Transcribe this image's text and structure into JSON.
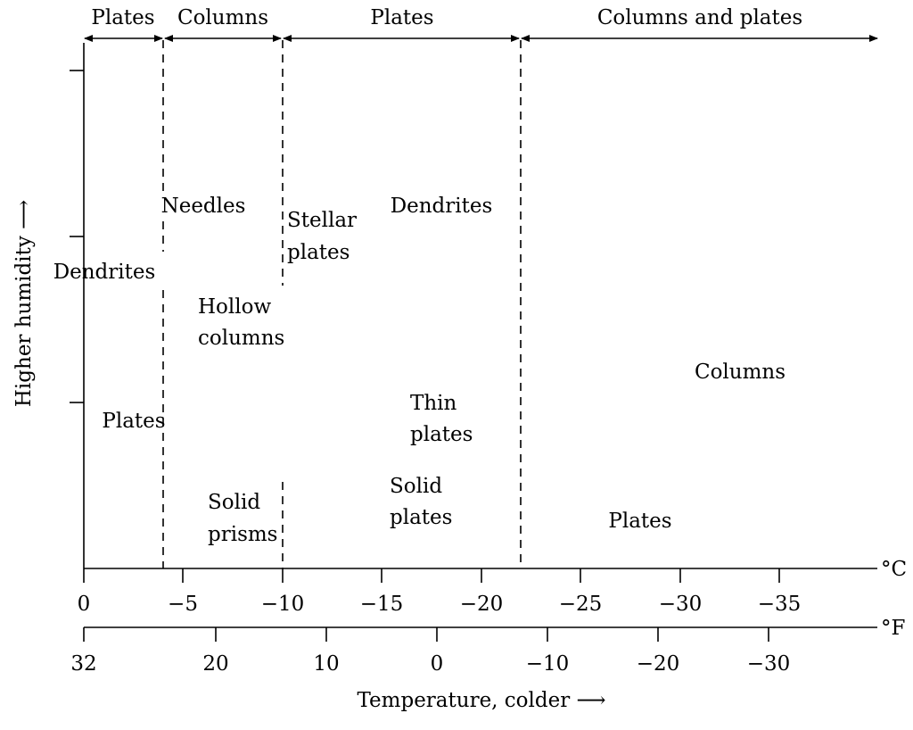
{
  "top_ranges": [
    "Plates",
    "Columns",
    "Plates",
    "Columns and plates"
  ],
  "regions": {
    "dendrites_left": "Dendrites",
    "plates_left": "Plates",
    "needles": "Needles",
    "hollow_columns_1": "Hollow",
    "hollow_columns_2": "columns",
    "solid_prisms_1": "Solid",
    "solid_prisms_2": "prisms",
    "stellar_plates_1": "Stellar",
    "stellar_plates_2": "plates",
    "dendrites_mid": "Dendrites",
    "thin_plates_1": "Thin",
    "thin_plates_2": "plates",
    "solid_plates_1": "Solid",
    "solid_plates_2": "plates",
    "columns_right": "Columns",
    "plates_right": "Plates"
  },
  "axes": {
    "y_label": "Higher humidity ⟶",
    "x_label": "Temperature, colder ⟶",
    "celsius_unit": "°C",
    "fahrenheit_unit": "°F",
    "celsius_ticks": [
      "0",
      "−5",
      "−10",
      "−15",
      "−20",
      "−25",
      "−30",
      "−35"
    ],
    "fahrenheit_ticks": [
      "32",
      "20",
      "10",
      "0",
      "−10",
      "−20",
      "−30"
    ]
  }
}
